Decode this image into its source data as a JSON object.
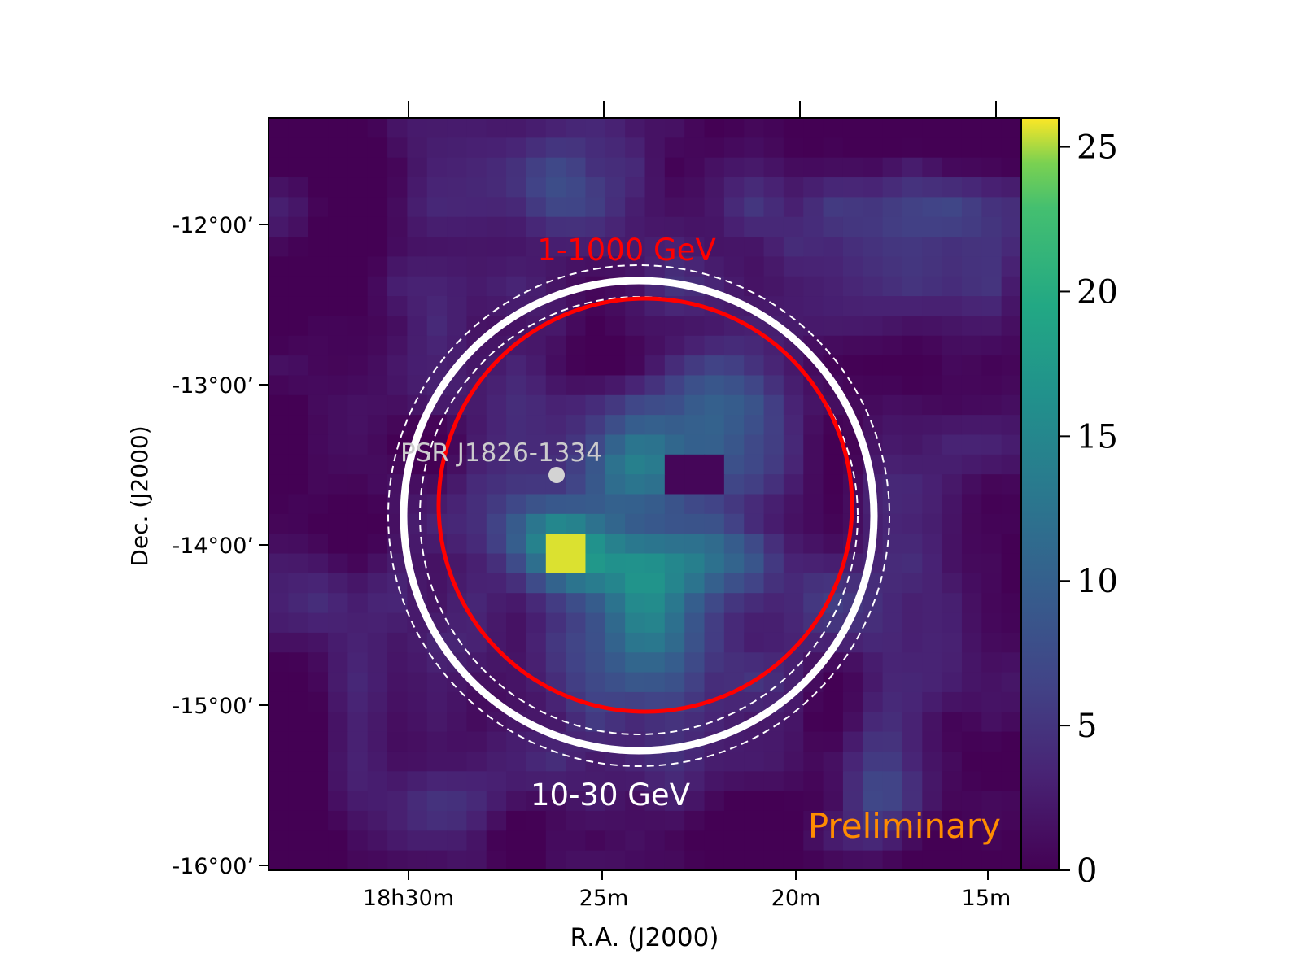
{
  "chart_data": {
    "type": "heatmap",
    "xlabel": "R.A. (J2000)",
    "ylabel": "Dec.  (J2000)",
    "x_ticks": [
      "18h30m",
      "25m",
      "20m",
      "15m"
    ],
    "y_ticks": [
      "-12°00’",
      "-13°00’",
      "-14°00’",
      "-15°00’",
      "-16°00’"
    ],
    "colorbar": {
      "range": [
        0,
        26
      ],
      "ticks": [
        0,
        5,
        10,
        15,
        20,
        25
      ],
      "tick_labels": [
        "0",
        "5",
        "10",
        "15",
        "20",
        "25"
      ],
      "colormap": "viridis"
    },
    "annotations": {
      "pulsar_label": "PSR J1826-1334",
      "red_circle_label": "1-1000 GeV",
      "white_circle_label": "10-30 GeV",
      "watermark": "Preliminary"
    },
    "grid_size": [
      38,
      38
    ],
    "peak_value": 25.6
  },
  "colors": {
    "red_circle": "#ff0000",
    "white_circle": "#ffffff",
    "pulsar_marker": "#d3d3d3",
    "watermark": "#ff8c00",
    "background": "#440154"
  }
}
